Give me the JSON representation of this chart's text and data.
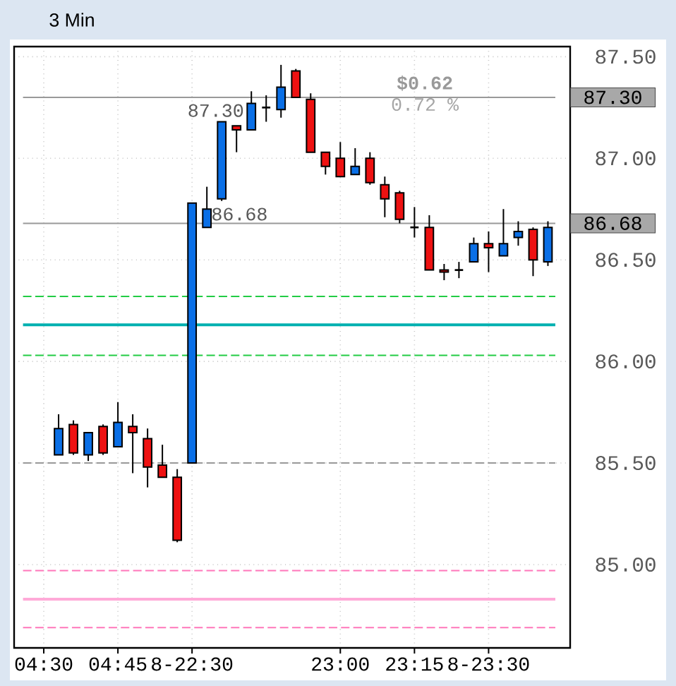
{
  "chart_data": {
    "type": "candlestick",
    "title": "3 Min",
    "categories": [
      "04:30",
      null,
      null,
      null,
      null,
      "04:45",
      null,
      null,
      null,
      null,
      "8-22:30",
      null,
      null,
      null,
      null,
      null,
      null,
      null,
      null,
      null,
      "23:00",
      null,
      null,
      null,
      null,
      "23:15",
      null,
      null,
      null,
      null,
      "8-23:30",
      null,
      null,
      null,
      null
    ],
    "ohlc": [
      null,
      [
        85.54,
        85.74,
        85.54,
        85.67
      ],
      [
        85.69,
        85.71,
        85.54,
        85.55
      ],
      [
        85.54,
        85.65,
        85.51,
        85.65
      ],
      [
        85.68,
        85.69,
        85.54,
        85.55
      ],
      [
        85.58,
        85.8,
        85.58,
        85.7
      ],
      [
        85.68,
        85.74,
        85.45,
        85.65
      ],
      [
        85.62,
        85.67,
        85.38,
        85.48
      ],
      [
        85.49,
        85.59,
        85.43,
        85.43
      ],
      [
        85.43,
        85.47,
        85.11,
        85.12
      ],
      [
        85.5,
        86.78,
        85.5,
        86.78
      ],
      [
        86.66,
        86.86,
        86.66,
        86.75
      ],
      [
        86.8,
        87.18,
        86.79,
        87.18
      ],
      [
        87.16,
        87.16,
        87.03,
        87.14
      ],
      [
        87.14,
        87.33,
        87.14,
        87.27
      ],
      [
        87.25,
        87.31,
        87.18,
        87.25
      ],
      [
        87.24,
        87.46,
        87.2,
        87.35
      ],
      [
        87.43,
        87.44,
        87.3,
        87.3
      ],
      [
        87.29,
        87.32,
        87.03,
        87.03
      ],
      [
        87.03,
        87.03,
        86.92,
        86.96
      ],
      [
        87.0,
        87.08,
        86.91,
        86.91
      ],
      [
        86.92,
        87.05,
        86.92,
        86.96
      ],
      [
        87.0,
        87.03,
        86.87,
        86.88
      ],
      [
        86.87,
        86.91,
        86.71,
        86.8
      ],
      [
        86.83,
        86.84,
        86.68,
        86.7
      ],
      [
        86.66,
        86.76,
        86.61,
        86.66
      ],
      [
        86.66,
        86.72,
        86.45,
        86.45
      ],
      [
        86.45,
        86.48,
        86.4,
        86.44
      ],
      [
        86.45,
        86.49,
        86.41,
        86.45
      ],
      [
        86.49,
        86.61,
        86.49,
        86.58
      ],
      [
        86.58,
        86.64,
        86.44,
        86.56
      ],
      [
        86.52,
        86.75,
        86.52,
        86.58
      ],
      [
        86.61,
        86.69,
        86.57,
        86.64
      ],
      [
        86.65,
        86.66,
        86.42,
        86.5
      ],
      [
        86.49,
        86.69,
        86.47,
        86.66
      ]
    ],
    "colors": [
      null,
      "#0a6fe6",
      "#ee1111",
      "#0a6fe6",
      "#ee1111",
      "#0a6fe6",
      "#ee1111",
      "#ee1111",
      "#ee1111",
      "#ee1111",
      "#0a6fe6",
      "#0a6fe6",
      "#0a6fe6",
      "#ee1111",
      "#0a6fe6",
      "#000000",
      "#0a6fe6",
      "#ee1111",
      "#ee1111",
      "#ee1111",
      "#ee1111",
      "#0a6fe6",
      "#ee1111",
      "#ee1111",
      "#ee1111",
      "#000000",
      "#ee1111",
      "#ee1111",
      "#000000",
      "#0a6fe6",
      "#ee1111",
      "#0a6fe6",
      "#0a6fe6",
      "#ee1111",
      "#0a6fe6"
    ],
    "ylim": [
      84.59,
      87.55
    ],
    "yticks": [
      {
        "value": 85.0,
        "label": "85.00"
      },
      {
        "value": 85.5,
        "label": "85.50"
      },
      {
        "value": 86.0,
        "label": "86.00"
      },
      {
        "value": 86.5,
        "label": "86.50"
      },
      {
        "value": 87.0,
        "label": "87.00"
      },
      {
        "value": 87.5,
        "label": "87.50"
      }
    ],
    "grid": true,
    "ref_lines": [
      {
        "axis": "y",
        "value": 87.3,
        "label": "87.30",
        "color": "#999999",
        "line_style": "solid"
      },
      {
        "axis": "y",
        "value": 86.68,
        "label": "86.68",
        "color": "#999999",
        "line_style": "solid"
      },
      {
        "axis": "y",
        "value": 86.32,
        "color": "#22cc44",
        "line_style": "dashed"
      },
      {
        "axis": "y",
        "value": 86.18,
        "color": "#00b0b0",
        "line_style": "solid"
      },
      {
        "axis": "y",
        "value": 86.03,
        "color": "#22cc44",
        "line_style": "dashed"
      },
      {
        "axis": "y",
        "value": 85.5,
        "color": "#999999",
        "line_style": "dashed"
      },
      {
        "axis": "y",
        "value": 84.97,
        "color": "#ff77bb",
        "line_style": "dashed"
      },
      {
        "axis": "y",
        "value": 84.83,
        "color": "#ffaad8",
        "line_style": "solid"
      },
      {
        "axis": "y",
        "value": 84.69,
        "color": "#ff77bb",
        "line_style": "dashed"
      }
    ],
    "annotations": [
      "$0.62",
      "0.72 %",
      "87.30",
      "86.68"
    ]
  }
}
